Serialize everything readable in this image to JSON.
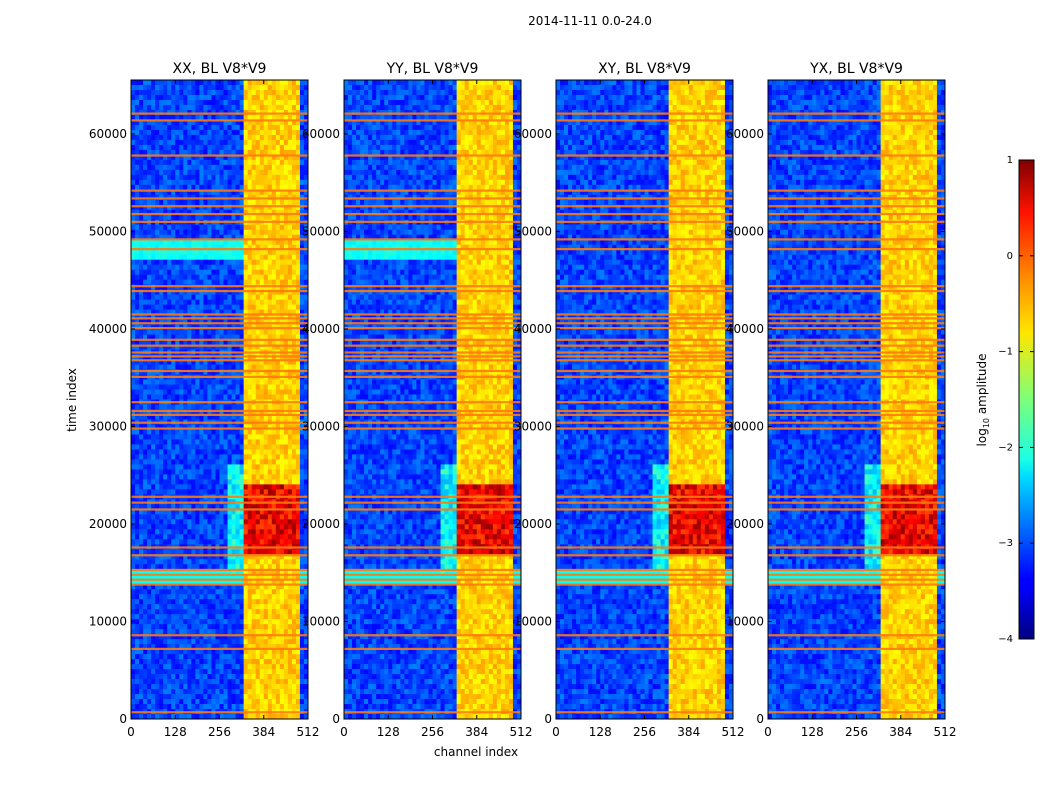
{
  "chart_data": {
    "type": "heatmap",
    "suptitle": "2014-11-11 0.0-24.0",
    "xlabel": "channel index",
    "ylabel": "time index",
    "xlim": [
      0,
      512
    ],
    "ylim": [
      0,
      65536
    ],
    "xticks": [
      0,
      128,
      256,
      384,
      512
    ],
    "yticks": [
      0,
      10000,
      20000,
      30000,
      40000,
      50000,
      60000
    ],
    "panels": [
      {
        "title": "XX, BL V8*V9"
      },
      {
        "title": "YY, BL V8*V9"
      },
      {
        "title": "XY, BL V8*V9"
      },
      {
        "title": "YX, BL V8*V9"
      }
    ],
    "colorbar": {
      "label": "log",
      "label_sub": "10",
      "label_rest": " amplitude",
      "range": [
        -4,
        1
      ],
      "ticks": [
        "1",
        "0",
        "−1",
        "−2",
        "−3",
        "−4"
      ],
      "tick_values": [
        1,
        0,
        -1,
        -2,
        -3,
        -4
      ],
      "colormap": "jet"
    },
    "features": {
      "bright_band_channels": [
        325,
        490
      ],
      "peak_time_range": [
        17000,
        24000
      ],
      "flagged_rows": [
        700,
        7200,
        8600,
        13800,
        14300,
        14800,
        15300,
        16800,
        17600,
        21500,
        22200,
        22800,
        29800,
        30400,
        31200,
        31600,
        32500,
        35100,
        35700,
        36800,
        37200,
        37600,
        38300,
        38900,
        40100,
        40600,
        41100,
        41500,
        43900,
        44400,
        48200,
        49200,
        51000,
        51800,
        52600,
        53400,
        54200,
        57800,
        61400,
        62100
      ]
    }
  }
}
